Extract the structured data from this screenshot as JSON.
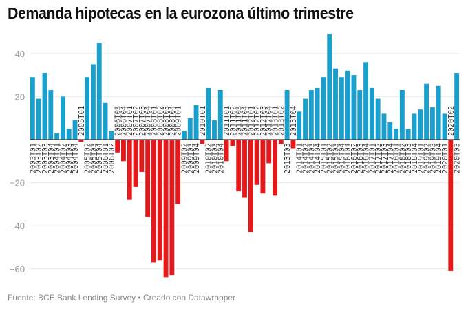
{
  "title": "Demanda hipotecas en la eurozona último trimestre",
  "footer": "Fuente: BCE Bank Lending Survey • Creado con Datawrapper",
  "colors": {
    "positive": "#1aa0cc",
    "negative": "#e3191c",
    "grid": "#e8e8e8",
    "baseline": "#333333"
  },
  "chart_data": {
    "type": "bar",
    "title": "Demanda hipotecas en la eurozona último trimestre",
    "xlabel": "",
    "ylabel": "",
    "ylim": [
      -65,
      50
    ],
    "yticks": [
      40,
      20,
      0,
      -20,
      -40,
      -60
    ],
    "ytick_labels": [
      "40",
      "20",
      "",
      "−20",
      "−40",
      "−60"
    ],
    "grid": true,
    "legend": "none",
    "categories": [
      "2003T01",
      "2003T02",
      "2003T03",
      "2003T04",
      "2004T01",
      "2004T02",
      "2004T03",
      "2004T04",
      "2005T01",
      "2005T02",
      "2005T03",
      "2005T04",
      "2006T01",
      "2006T02",
      "2006T03",
      "2006T04",
      "2007T01",
      "2007T02",
      "2007T03",
      "2007T04",
      "2008T01",
      "2008T02",
      "2008T03",
      "2008T04",
      "2009T01",
      "2009T02",
      "2009T03",
      "2009T04",
      "2010T01",
      "2010T02",
      "2010T03",
      "2010T04",
      "2011T01",
      "2011T02",
      "2011T03",
      "2011T04",
      "2012T01",
      "2012T02",
      "2012T03",
      "2012T04",
      "2013T01",
      "2013T02",
      "2013T03",
      "2013T04",
      "2014T01",
      "2014T02",
      "2014T03",
      "2014T04",
      "2015T01",
      "2015T02",
      "2015T03",
      "2015T04",
      "2016T01",
      "2016T02",
      "2016T03",
      "2016T04",
      "2017T01",
      "2017T02",
      "2017T03",
      "2017T04",
      "2018T01",
      "2018T02",
      "2018T03",
      "2018T04",
      "2019T01",
      "2019T02",
      "2019T03",
      "2019T04",
      "2020T01",
      "2020T02",
      "2020T03"
    ],
    "values": [
      29,
      19,
      31,
      23,
      3,
      20,
      5,
      9,
      -1,
      29,
      35,
      45,
      17,
      4,
      -6,
      -10,
      -28,
      -22,
      -15,
      -36,
      -57,
      -56,
      -64,
      -63,
      -30,
      4,
      10,
      16,
      -2,
      24,
      9,
      23,
      -10,
      -3,
      -24,
      -27,
      -43,
      -21,
      -25,
      -11,
      -26,
      -2,
      23,
      -4,
      13,
      19,
      23,
      24,
      29,
      49,
      33,
      29,
      32,
      30,
      23,
      36,
      24,
      19,
      12,
      8,
      5,
      23,
      5,
      12,
      14,
      26,
      15,
      25,
      12,
      -61,
      31
    ]
  }
}
